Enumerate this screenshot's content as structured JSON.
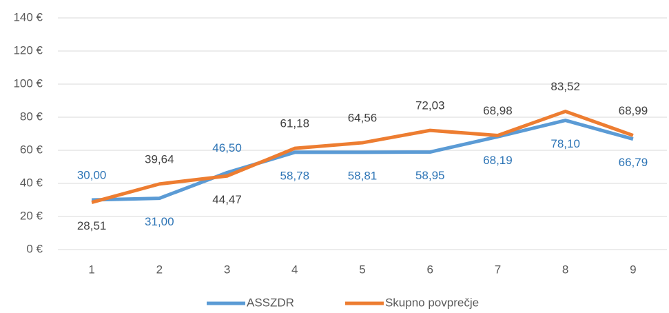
{
  "chart_data": {
    "type": "line",
    "categories": [
      "1",
      "2",
      "3",
      "4",
      "5",
      "6",
      "7",
      "8",
      "9"
    ],
    "series": [
      {
        "name": "ASSZDR",
        "color": "#5b9bd5",
        "label_color": "#2e75b6",
        "values": [
          30,
          31,
          46.5,
          58.78,
          58.81,
          58.95,
          68.19,
          78.1,
          66.79
        ],
        "value_labels": [
          "30,00",
          "31,00",
          "46,50",
          "58,78",
          "58,81",
          "58,95",
          "68,19",
          "78,10",
          "66,79"
        ]
      },
      {
        "name": "Skupno povprečje",
        "color": "#ed7d31",
        "label_color": "#404040",
        "values": [
          28.51,
          39.64,
          44.47,
          61.18,
          64.56,
          72.03,
          68.98,
          83.52,
          68.99
        ],
        "value_labels": [
          "28,51",
          "39,64",
          "44,47",
          "61,18",
          "64,56",
          "72,03",
          "68,98",
          "83,52",
          "68,99"
        ]
      }
    ],
    "ylim": [
      0,
      140
    ],
    "yticks": [
      {
        "value": 0,
        "label": "0 €"
      },
      {
        "value": 20,
        "label": "20 €"
      },
      {
        "value": 40,
        "label": "40 €"
      },
      {
        "value": 60,
        "label": "60 €"
      },
      {
        "value": 80,
        "label": "80 €"
      },
      {
        "value": 100,
        "label": "100 €"
      },
      {
        "value": 120,
        "label": "120 €"
      },
      {
        "value": 140,
        "label": "140 €"
      }
    ],
    "grid": true,
    "legend": "bottom"
  }
}
